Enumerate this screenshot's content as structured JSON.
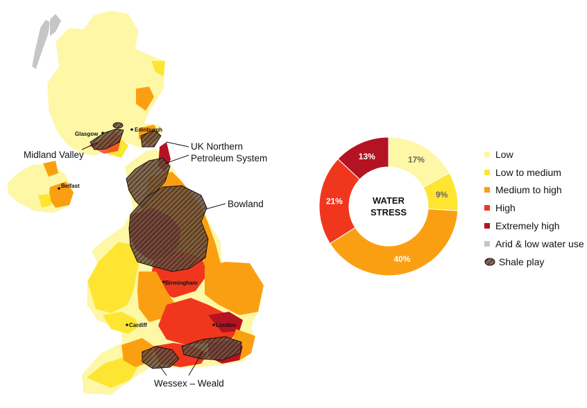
{
  "colors": {
    "low": "#fdf7a6",
    "low_to_medium": "#fde532",
    "medium_to_high": "#fb9f12",
    "high": "#f0371d",
    "extremely_high": "#b41323",
    "arid": "#c6c6c6",
    "shale": "#6b5040"
  },
  "map": {
    "cities": [
      "Glasgow",
      "Edinburgh",
      "Belfast",
      "Birmingham",
      "Cardiff",
      "London"
    ],
    "shale_plays": [
      "Midland Valley",
      "UK Northern Petroleum System",
      "Bowland",
      "Wessex – Weald"
    ],
    "northern_label_lines": [
      "UK Northern",
      "Petroleum System"
    ]
  },
  "chart_data": {
    "type": "pie",
    "title": "",
    "center_label": [
      "WATER",
      "STRESS"
    ],
    "slices": [
      {
        "label": "Low",
        "value": 17,
        "text": "17%",
        "color": "#fdf7a6"
      },
      {
        "label": "Low to medium",
        "value": 9,
        "text": "9%",
        "color": "#fde532"
      },
      {
        "label": "Medium to high",
        "value": 40,
        "text": "40%",
        "color": "#fb9f12"
      },
      {
        "label": "High",
        "value": 21,
        "text": "21%",
        "color": "#f0371d"
      },
      {
        "label": "Extremely high",
        "value": 13,
        "text": "13%",
        "color": "#b41323"
      }
    ]
  },
  "legend": {
    "items": [
      {
        "label": "Low",
        "color": "#fdf7a6"
      },
      {
        "label": "Low to medium",
        "color": "#fde532"
      },
      {
        "label": "Medium to high",
        "color": "#fb9f12"
      },
      {
        "label": "High",
        "color": "#f0371d"
      },
      {
        "label": "Extremely high",
        "color": "#b41323"
      },
      {
        "label": "Arid & low water use",
        "color": "#c6c6c6"
      }
    ],
    "shale_label": "Shale play"
  }
}
